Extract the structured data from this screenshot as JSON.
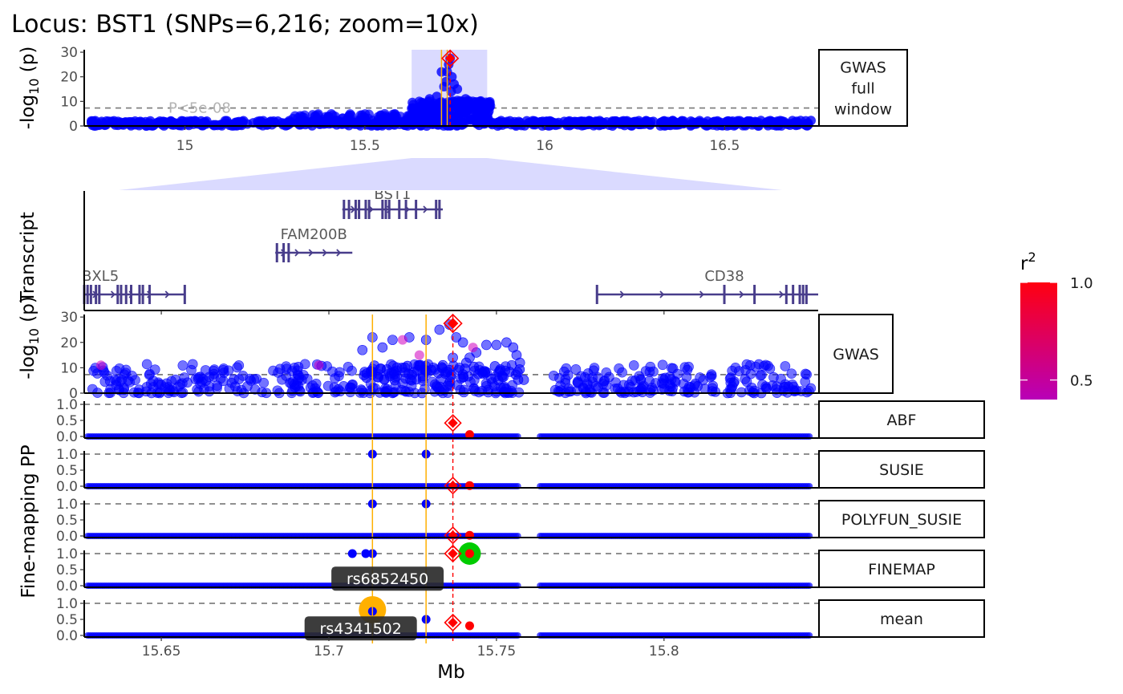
{
  "title": "Locus: BST1   (SNPs=6,216; zoom=10x)",
  "colors": {
    "snp": "#0000ff",
    "lead": "#ff0000",
    "consensus": "#ffb000",
    "credible": "#00cc00",
    "gene": "#483d8b",
    "zoom_band": "#dadaff",
    "r2_low": "#b800b8",
    "r2_high": "#ff0010",
    "threshold": "#808080"
  },
  "chart_data": [
    {
      "id": "gwas_full",
      "type": "scatter",
      "strip": [
        "GWAS",
        "full",
        "window"
      ],
      "ylabel_parts": [
        "-log",
        "10",
        " (p)"
      ],
      "xlabel": "",
      "xlim": [
        14.72,
        16.76
      ],
      "ylim": [
        0,
        31
      ],
      "xticks": [
        15,
        15.5,
        16,
        16.5
      ],
      "yticks": [
        0,
        10,
        20,
        30
      ],
      "zoom_region": [
        15.63,
        15.84
      ],
      "significance": {
        "y": 7.3,
        "label": "P<5e-08"
      },
      "lead_snp": {
        "x": 15.737,
        "y": 27.5
      },
      "consensus_lines": [
        15.713,
        15.729
      ],
      "peaks": [
        {
          "x": 15.737,
          "y": 27.5
        },
        {
          "x": 15.733,
          "y": 25
        },
        {
          "x": 15.729,
          "y": 22
        },
        {
          "x": 15.742,
          "y": 20
        },
        {
          "x": 15.725,
          "y": 18
        },
        {
          "x": 15.713,
          "y": 22
        },
        {
          "x": 15.748,
          "y": 17
        },
        {
          "x": 15.757,
          "y": 15
        },
        {
          "x": 15.72,
          "y": 16
        },
        {
          "x": 15.74,
          "y": 14
        },
        {
          "x": 15.68,
          "y": 11
        },
        {
          "x": 15.7,
          "y": 12
        },
        {
          "x": 15.78,
          "y": 11
        },
        {
          "x": 15.82,
          "y": 10
        },
        {
          "x": 15.8,
          "y": 10
        }
      ]
    },
    {
      "id": "transcript",
      "type": "gene-track",
      "ylabel": "Transcript",
      "xlim": [
        15.627,
        15.846
      ],
      "genes": [
        {
          "name": "BST1",
          "row": 1,
          "start": 15.704,
          "end": 15.734,
          "exons": [
            15.7045,
            15.706,
            15.708,
            15.709,
            15.711,
            15.712,
            15.716,
            15.717,
            15.718,
            15.721,
            15.723,
            15.726,
            15.732,
            15.733
          ]
        },
        {
          "name": "FAM200B",
          "row": 2,
          "start": 15.684,
          "end": 15.707,
          "exons": [
            15.6845,
            15.6865,
            15.688
          ]
        },
        {
          "name": "BXL5",
          "row": 3,
          "start": 15.627,
          "end": 15.657,
          "exons": [
            15.627,
            15.628,
            15.629,
            15.6305,
            15.6315,
            15.637,
            15.638,
            15.6395,
            15.641,
            15.6435,
            15.6445,
            15.6465,
            15.657
          ]
        },
        {
          "name": "CD38",
          "row": 3,
          "start": 15.78,
          "end": 15.846,
          "exons": [
            15.78,
            15.818,
            15.827,
            15.8365,
            15.8385,
            15.8405,
            15.8415,
            15.8425
          ]
        }
      ]
    },
    {
      "id": "gwas_zoom",
      "type": "scatter",
      "strip": [
        "GWAS"
      ],
      "ylabel_parts": [
        "-log",
        "10",
        " (p)"
      ],
      "xlim": [
        15.627,
        15.846
      ],
      "ylim": [
        0,
        31
      ],
      "yticks": [
        0,
        10,
        20,
        30
      ],
      "significance": {
        "y": 7.3
      },
      "lead_snp": {
        "x": 15.737,
        "y": 27.5
      },
      "points": [
        {
          "x": 15.713,
          "y": 22
        },
        {
          "x": 15.71,
          "y": 17
        },
        {
          "x": 15.716,
          "y": 18
        },
        {
          "x": 15.719,
          "y": 21
        },
        {
          "x": 15.724,
          "y": 22
        },
        {
          "x": 15.729,
          "y": 21
        },
        {
          "x": 15.733,
          "y": 25
        },
        {
          "x": 15.736,
          "y": 27
        },
        {
          "x": 15.738,
          "y": 22
        },
        {
          "x": 15.74,
          "y": 20
        },
        {
          "x": 15.742,
          "y": 14
        },
        {
          "x": 15.744,
          "y": 16
        },
        {
          "x": 15.747,
          "y": 19
        },
        {
          "x": 15.75,
          "y": 19
        },
        {
          "x": 15.753,
          "y": 20
        },
        {
          "x": 15.755,
          "y": 18
        },
        {
          "x": 15.756,
          "y": 15
        },
        {
          "x": 15.757,
          "y": 12
        },
        {
          "x": 15.739,
          "y": 10
        },
        {
          "x": 15.745,
          "y": 9
        },
        {
          "x": 15.737,
          "y": 14
        },
        {
          "x": 15.741,
          "y": 12
        },
        {
          "x": 15.734,
          "y": 11
        },
        {
          "x": 15.727,
          "y": 11
        }
      ],
      "mid_points": [
        {
          "x": 15.722,
          "y": 21
        },
        {
          "x": 15.727,
          "y": 15
        },
        {
          "x": 15.743,
          "y": 18
        },
        {
          "x": 15.632,
          "y": 11
        },
        {
          "x": 15.697,
          "y": 11
        }
      ]
    },
    {
      "id": "ABF",
      "type": "scatter",
      "strip": [
        "ABF"
      ],
      "xlim": [
        15.627,
        15.846
      ],
      "ylim": [
        -0.05,
        1.1
      ],
      "yticks": [
        0.0,
        0.5,
        1.0
      ],
      "ytick_labels": [
        "0.0",
        "0.5",
        "1.0"
      ],
      "reference_y": 1.0,
      "lead_snp": {
        "x": 15.737,
        "y": 0.42
      },
      "points": [
        {
          "x": 15.742,
          "y": 0.06,
          "color": "lead"
        }
      ],
      "labels": []
    },
    {
      "id": "SUSIE",
      "type": "scatter",
      "strip": [
        "SUSIE"
      ],
      "xlim": [
        15.627,
        15.846
      ],
      "ylim": [
        -0.05,
        1.1
      ],
      "yticks": [
        0.0,
        0.5,
        1.0
      ],
      "ytick_labels": [
        "0.0",
        "0.5",
        "1.0"
      ],
      "reference_y": 1.0,
      "lead_snp": {
        "x": 15.737,
        "y": 0.02
      },
      "points": [
        {
          "x": 15.713,
          "y": 1.0,
          "color": "snp"
        },
        {
          "x": 15.729,
          "y": 1.0,
          "color": "snp"
        },
        {
          "x": 15.742,
          "y": 0.02,
          "color": "lead"
        }
      ],
      "labels": []
    },
    {
      "id": "POLYFUN_SUSIE",
      "type": "scatter",
      "strip": [
        "POLYFUN_SUSIE"
      ],
      "xlim": [
        15.627,
        15.846
      ],
      "ylim": [
        -0.05,
        1.1
      ],
      "yticks": [
        0.0,
        0.5,
        1.0
      ],
      "ytick_labels": [
        "0.0",
        "0.5",
        "1.0"
      ],
      "reference_y": 1.0,
      "lead_snp": {
        "x": 15.737,
        "y": 0.02
      },
      "points": [
        {
          "x": 15.713,
          "y": 1.0,
          "color": "snp"
        },
        {
          "x": 15.729,
          "y": 1.0,
          "color": "snp"
        },
        {
          "x": 15.742,
          "y": 0.02,
          "color": "lead"
        }
      ],
      "labels": []
    },
    {
      "id": "FINEMAP",
      "type": "scatter",
      "strip": [
        "FINEMAP"
      ],
      "xlim": [
        15.627,
        15.846
      ],
      "ylim": [
        -0.05,
        1.1
      ],
      "yticks": [
        0.0,
        0.5,
        1.0
      ],
      "ytick_labels": [
        "0.0",
        "0.5",
        "1.0"
      ],
      "reference_y": 1.0,
      "lead_snp": {
        "x": 15.737,
        "y": 1.0
      },
      "credible_snp": {
        "x": 15.742,
        "y": 1.0
      },
      "points": [
        {
          "x": 15.707,
          "y": 1.0,
          "color": "snp"
        },
        {
          "x": 15.711,
          "y": 1.0,
          "color": "snp"
        },
        {
          "x": 15.713,
          "y": 1.0,
          "color": "snp"
        },
        {
          "x": 15.742,
          "y": 1.0,
          "color": "lead"
        }
      ],
      "labels": [
        {
          "text": "rs6852450",
          "x": 15.7175,
          "y": 0.22
        }
      ]
    },
    {
      "id": "mean",
      "type": "scatter",
      "strip": [
        "mean"
      ],
      "xlim": [
        15.627,
        15.846
      ],
      "ylim": [
        -0.05,
        1.1
      ],
      "yticks": [
        0.0,
        0.5,
        1.0
      ],
      "ytick_labels": [
        "0.0",
        "0.5",
        "1.0"
      ],
      "reference_y": 1.0,
      "xticks": [
        15.65,
        15.7,
        15.75,
        15.8
      ],
      "xtick_labels": [
        "15.65",
        "15.7",
        "15.75",
        "15.8"
      ],
      "xlabel": "Mb",
      "lead_snp": {
        "x": 15.737,
        "y": 0.4
      },
      "consensus_snp": {
        "x": 15.713,
        "y": 0.8
      },
      "points": [
        {
          "x": 15.713,
          "y": 0.75,
          "color": "snp"
        },
        {
          "x": 15.729,
          "y": 0.5,
          "color": "snp"
        },
        {
          "x": 15.742,
          "y": 0.3,
          "color": "lead"
        }
      ],
      "labels": [
        {
          "text": "rs4341502",
          "x": 15.7095,
          "y": 0.22
        }
      ]
    }
  ],
  "shared_axis_label": "Fine-mapping PP",
  "legend": {
    "title_base": "r",
    "title_sup": "2",
    "labels": [
      "1.0",
      "0.5"
    ],
    "values": [
      1.0,
      0.5
    ],
    "range": [
      0.4,
      1.0
    ]
  }
}
